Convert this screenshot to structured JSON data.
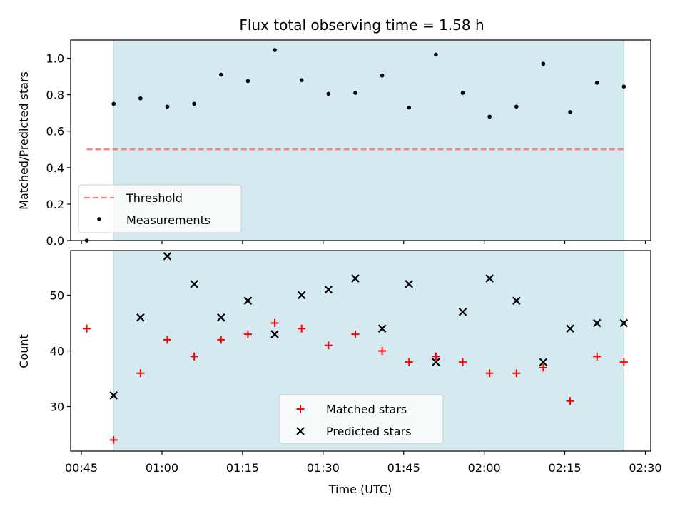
{
  "chart_data": [
    {
      "type": "scatter",
      "title": "Flux total observing time = 1.58 h",
      "ylabel": "Matched/Predicted stars",
      "xlabel": "",
      "ylim": [
        0.0,
        1.1
      ],
      "xlim": [
        "00:43",
        "02:31"
      ],
      "yticks": [
        "0.0",
        "0.2",
        "0.4",
        "0.6",
        "0.8",
        "1.0"
      ],
      "shaded_region": {
        "start": "00:51",
        "end": "02:26",
        "color": "#d4eaf0"
      },
      "threshold": {
        "name": "Threshold",
        "value": 0.5,
        "x_start": "00:46",
        "x_end": "02:26",
        "color": "#f08080"
      },
      "series": [
        {
          "name": "Measurements",
          "marker": "dot",
          "color": "#000000",
          "x": [
            "00:46",
            "00:51",
            "00:56",
            "01:01",
            "01:06",
            "01:11",
            "01:16",
            "01:21",
            "01:26",
            "01:31",
            "01:36",
            "01:41",
            "01:46",
            "01:51",
            "01:56",
            "02:01",
            "02:06",
            "02:11",
            "02:16",
            "02:21",
            "02:26"
          ],
          "y": [
            0.0,
            0.75,
            0.78,
            0.735,
            0.75,
            0.91,
            0.875,
            1.045,
            0.88,
            0.805,
            0.81,
            0.905,
            0.73,
            1.02,
            0.81,
            0.68,
            0.735,
            0.97,
            0.705,
            0.865,
            0.845
          ]
        }
      ],
      "legend": {
        "position": "lower-left",
        "entries": [
          "Threshold",
          "Measurements"
        ]
      }
    },
    {
      "type": "scatter",
      "title": "",
      "ylabel": "Count",
      "xlabel": "Time (UTC)",
      "ylim": [
        22,
        58
      ],
      "xlim": [
        "00:43",
        "02:31"
      ],
      "yticks": [
        "30",
        "40",
        "50"
      ],
      "xticks": [
        "00:45",
        "01:00",
        "01:15",
        "01:30",
        "01:45",
        "02:00",
        "02:15",
        "02:30"
      ],
      "shaded_region": {
        "start": "00:51",
        "end": "02:26",
        "color": "#d4eaf0"
      },
      "series": [
        {
          "name": "Matched stars",
          "marker": "plus",
          "color": "#ff0000",
          "x": [
            "00:46",
            "00:51",
            "00:56",
            "01:01",
            "01:06",
            "01:11",
            "01:16",
            "01:21",
            "01:26",
            "01:31",
            "01:36",
            "01:41",
            "01:46",
            "01:51",
            "01:56",
            "02:01",
            "02:06",
            "02:11",
            "02:16",
            "02:21",
            "02:26"
          ],
          "y": [
            44,
            24,
            36,
            42,
            39,
            42,
            43,
            45,
            44,
            41,
            43,
            40,
            38,
            39,
            38,
            36,
            36,
            37,
            31,
            39,
            38
          ]
        },
        {
          "name": "Predicted stars",
          "marker": "x",
          "color": "#000000",
          "x": [
            "00:51",
            "00:56",
            "01:01",
            "01:06",
            "01:11",
            "01:16",
            "01:21",
            "01:26",
            "01:31",
            "01:36",
            "01:41",
            "01:46",
            "01:51",
            "01:56",
            "02:01",
            "02:06",
            "02:11",
            "02:16",
            "02:21",
            "02:26"
          ],
          "y": [
            32,
            46,
            57,
            52,
            46,
            49,
            43,
            50,
            51,
            53,
            44,
            52,
            38,
            47,
            53,
            49,
            38,
            44,
            45,
            45
          ]
        }
      ],
      "legend": {
        "position": "lower-center",
        "entries": [
          "Matched stars",
          "Predicted stars"
        ]
      }
    }
  ]
}
